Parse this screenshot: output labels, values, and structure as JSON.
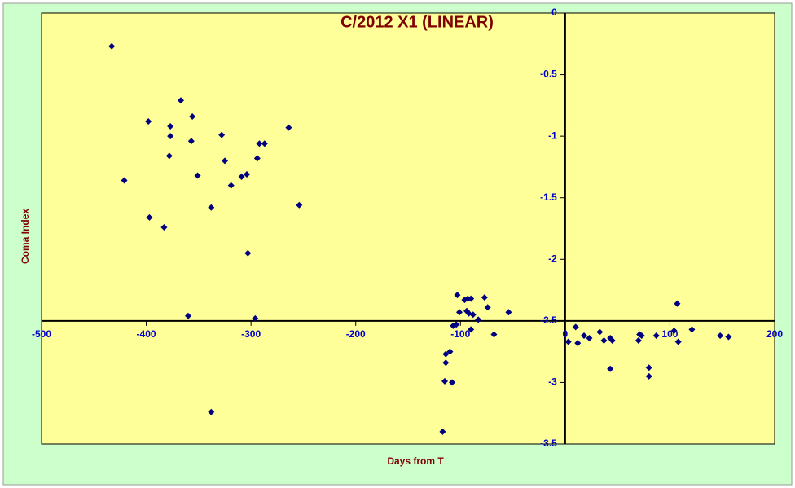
{
  "chart_data": {
    "type": "scatter",
    "title": "C/2012 X1 (LINEAR)",
    "x_label": "Days from T",
    "y_label": "Coma Index",
    "xlim": [
      -500,
      200
    ],
    "ylim": [
      -3.5,
      0
    ],
    "xticks": [
      -500,
      -400,
      -300,
      -200,
      -100,
      0,
      100,
      200
    ],
    "yticks": [
      0,
      -0.5,
      -1,
      -1.5,
      -2,
      -2.5,
      -3,
      -3.5
    ],
    "x_axis_crosses_at": -2.5,
    "y_axis_crosses_at": 0,
    "color": "#000080",
    "x": [
      -433,
      -421,
      -398,
      -397,
      -383,
      -378,
      -377,
      -377,
      -367,
      -356,
      -357,
      -351,
      -360,
      -338,
      -338,
      -328,
      -325,
      -319,
      -309,
      -304,
      -303,
      -296,
      -294,
      -292,
      -287,
      -264,
      -254,
      -117,
      -115,
      -114,
      -114,
      -110,
      -108,
      -107,
      -104,
      -103,
      -101,
      -96,
      -93,
      -94,
      -92,
      -90,
      -90,
      -88,
      -83,
      -77,
      -74,
      -68,
      -54,
      3,
      10,
      12,
      18,
      23,
      33,
      37,
      43,
      45,
      43,
      70,
      71,
      73,
      80,
      80,
      87,
      104,
      107,
      108,
      121,
      148,
      156
    ],
    "values": [
      -0.27,
      -1.36,
      -0.88,
      -1.66,
      -1.74,
      -1.16,
      -0.92,
      -1.0,
      -0.71,
      -0.84,
      -1.04,
      -1.32,
      -2.46,
      -1.58,
      -3.24,
      -0.99,
      -1.2,
      -1.4,
      -1.33,
      -1.31,
      -1.95,
      -2.48,
      -1.18,
      -1.06,
      -1.06,
      -0.93,
      -1.56,
      -3.4,
      -2.99,
      -2.84,
      -2.77,
      -2.75,
      -3.0,
      -2.54,
      -2.53,
      -2.29,
      -2.43,
      -2.33,
      -2.32,
      -2.42,
      -2.44,
      -2.32,
      -2.57,
      -2.45,
      -2.49,
      -2.31,
      -2.39,
      -2.61,
      -2.43,
      -2.67,
      -2.55,
      -2.68,
      -2.62,
      -2.64,
      -2.59,
      -2.66,
      -2.64,
      -2.66,
      -2.89,
      -2.66,
      -2.61,
      -2.62,
      -2.88,
      -2.95,
      -2.62,
      -2.58,
      -2.36,
      -2.67,
      -2.57,
      -2.62,
      -2.63
    ]
  }
}
